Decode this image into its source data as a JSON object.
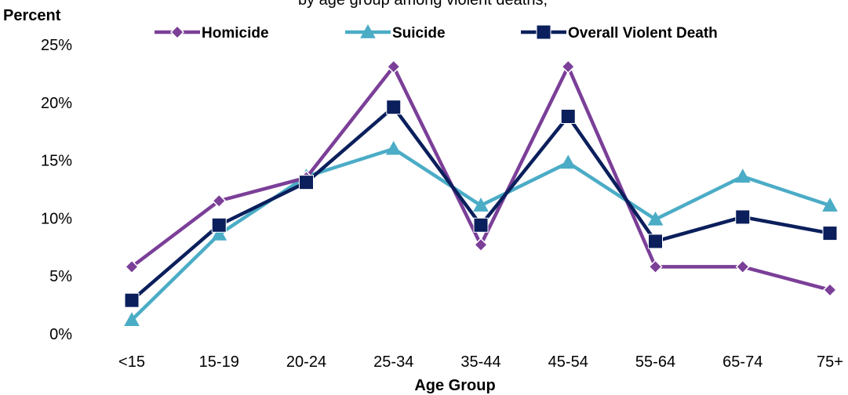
{
  "chart_data": {
    "type": "line",
    "title": "",
    "title_fragment": "by age group among violent deaths,",
    "ylabel": "Percent",
    "xlabel": "Age Group",
    "categories": [
      "<15",
      "15-19",
      "20-24",
      "25-34",
      "35-44",
      "45-54",
      "55-64",
      "65-74",
      "75+"
    ],
    "ylim": [
      0,
      25
    ],
    "yticks": [
      0,
      5,
      10,
      15,
      20,
      25
    ],
    "ytick_labels": [
      "0%",
      "5%",
      "10%",
      "15%",
      "20%",
      "25%"
    ],
    "grid": false,
    "legend_position": "top",
    "series": [
      {
        "name": "Homicide",
        "color": "#7B3F98",
        "marker": "diamond",
        "values": [
          5.8,
          11.5,
          13.5,
          23.1,
          7.7,
          23.1,
          5.8,
          5.8,
          3.8
        ]
      },
      {
        "name": "Suicide",
        "color": "#4BACC6",
        "marker": "triangle",
        "values": [
          1.2,
          8.6,
          13.6,
          16.0,
          11.1,
          14.8,
          9.9,
          13.6,
          11.1
        ]
      },
      {
        "name": "Overall Violent Death",
        "color": "#0B1F5C",
        "marker": "square",
        "values": [
          2.9,
          9.4,
          13.1,
          19.6,
          9.4,
          18.8,
          8.0,
          10.1,
          8.7
        ]
      }
    ]
  }
}
